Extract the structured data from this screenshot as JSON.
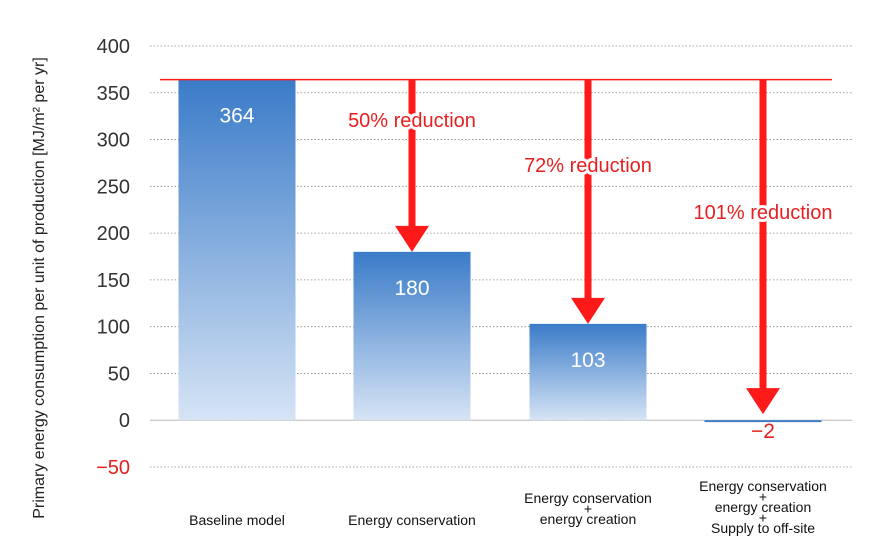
{
  "chart_data": {
    "type": "bar",
    "categories": [
      [
        "Baseline model"
      ],
      [
        "Energy conservation"
      ],
      [
        "Energy conservation",
        "+",
        "energy creation"
      ],
      [
        "Energy conservation",
        "+",
        "energy creation",
        "+",
        "Supply to off-site"
      ]
    ],
    "values": [
      364,
      180,
      103,
      -2
    ],
    "data_labels": [
      "364",
      "180",
      "103",
      "−2"
    ],
    "ylabel": "Primary energy consumption per unit of production [MJ/m² per yr]",
    "ylim": [
      -50,
      400
    ],
    "yticks": [
      "−50",
      "0",
      "50",
      "100",
      "150",
      "200",
      "250",
      "300",
      "350",
      "400"
    ],
    "ytick_values": [
      -50,
      0,
      50,
      100,
      150,
      200,
      250,
      300,
      350,
      400
    ],
    "grid": true,
    "reference_line": 364,
    "annotations": [
      {
        "text": "50% reduction",
        "category_index": 1
      },
      {
        "text": "72% reduction",
        "category_index": 2
      },
      {
        "text": "101% reduction",
        "category_index": 3
      }
    ]
  },
  "colors": {
    "bar_top": "#3a7bc8",
    "bar_bottom": "#d6e4f5",
    "arrow": "#ff1a1a",
    "annotation_text": "#e62020",
    "negative_tick": "#e62020",
    "grid": "#888888"
  }
}
